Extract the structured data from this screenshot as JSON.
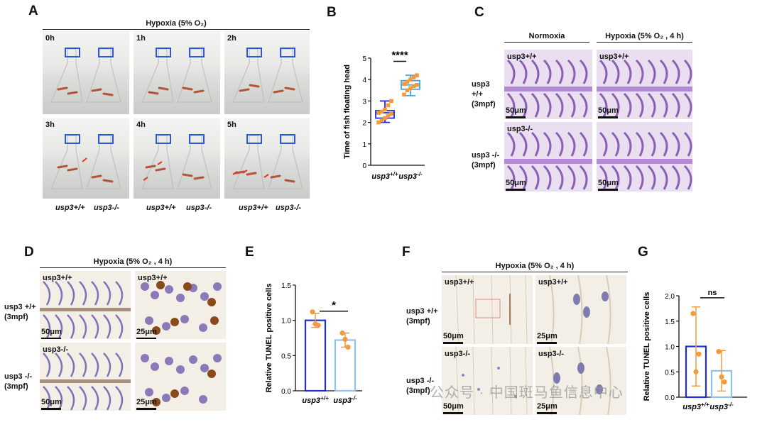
{
  "panel_labels": [
    "A",
    "B",
    "C",
    "D",
    "E",
    "F",
    "G"
  ],
  "panel_a": {
    "header": "Hypoxia (5% O₂)",
    "time_labels": [
      "0h",
      "1h",
      "2h",
      "3h",
      "4h",
      "5h"
    ],
    "genotypes": [
      "usp3+/+",
      "usp3-/-",
      "usp3+/+",
      "usp3-/-",
      "usp3+/+",
      "usp3-/-"
    ]
  },
  "panel_c": {
    "col_headers": [
      "Normoxia",
      "Hypoxia (5% O₂ , 4 h)"
    ],
    "row_labels": [
      "usp3 +/+\n(3mpf)",
      "usp3 -/-\n(3mpf)"
    ],
    "inset_labels": [
      "usp3+/+",
      "usp3+/+",
      "usp3-/-"
    ],
    "scale_bars": [
      "50μm",
      "50μm",
      "50μm",
      "50μm"
    ]
  },
  "panel_d": {
    "header": "Hypoxia (5% O₂ , 4 h)",
    "row_labels": [
      "usp3 +/+\n(3mpf)",
      "usp3 -/-\n(3mpf)"
    ],
    "inset_labels": [
      "usp3+/+",
      "usp3+/+",
      "usp3-/-"
    ],
    "scale_bars": [
      "50μm",
      "25μm",
      "50μm",
      "25μm"
    ]
  },
  "panel_f": {
    "header": "Hypoxia (5% O₂ , 4 h)",
    "row_labels": [
      "usp3 +/+\n(3mpf)",
      "usp3 -/-\n(3mpf)"
    ],
    "inset_labels": [
      "usp3+/+",
      "usp3+/+",
      "usp3-/-",
      "usp3-/-"
    ],
    "scale_bars": [
      "50μm",
      "25μm",
      "50μm",
      "25μm"
    ]
  },
  "watermark": "公众号 · 中国斑马鱼信息中心",
  "chart_data": [
    {
      "panel": "B",
      "type": "box",
      "ylabel": "Time of fish floating head",
      "ylim": [
        0,
        5
      ],
      "yticks": [
        0,
        1,
        2,
        3,
        4,
        5
      ],
      "categories": [
        "usp3+/+",
        "usp3-/-"
      ],
      "boxes": [
        {
          "min": 2.0,
          "q1": 2.2,
          "median": 2.45,
          "q3": 2.55,
          "max": 3.0,
          "color": "#1f2fd6"
        },
        {
          "min": 3.25,
          "q1": 3.55,
          "median": 3.75,
          "q3": 3.95,
          "max": 4.2,
          "color": "#3da7e8"
        }
      ],
      "points": [
        [
          2.0,
          2.1,
          2.2,
          2.3,
          2.4,
          2.45,
          2.5,
          2.6,
          2.8,
          3.0
        ],
        [
          3.3,
          3.5,
          3.6,
          3.7,
          3.75,
          3.8,
          3.9,
          4.0,
          4.1,
          4.2
        ]
      ],
      "point_color": "#f39a3c",
      "significance": "****"
    },
    {
      "panel": "E",
      "type": "bar",
      "ylabel": "Relative TUNEL positive cells",
      "ylim": [
        0,
        1.5
      ],
      "yticks": [
        "0.0",
        "0.5",
        "1.0",
        "1.5"
      ],
      "categories": [
        "usp3+/+",
        "usp3-/-"
      ],
      "values": [
        1.0,
        0.72
      ],
      "errors": [
        0.1,
        0.1
      ],
      "bar_colors": [
        "#1f2fd6",
        "#8ec3f0"
      ],
      "points": [
        [
          1.12,
          0.95,
          0.93
        ],
        [
          0.82,
          0.73,
          0.62
        ]
      ],
      "point_color": "#f39a3c",
      "significance": "*"
    },
    {
      "panel": "G",
      "type": "bar",
      "ylabel": "Relative TUNEL positive cells",
      "ylim": [
        0,
        2.0
      ],
      "yticks": [
        "0.0",
        "0.5",
        "1.0",
        "1.5",
        "2.0"
      ],
      "categories": [
        "usp3+/+",
        "usp3-/-"
      ],
      "values": [
        1.0,
        0.52
      ],
      "errors": [
        0.78,
        0.4
      ],
      "bar_colors": [
        "#1f2fd6",
        "#8ec3f0"
      ],
      "points": [
        [
          1.65,
          0.5,
          0.85
        ],
        [
          0.9,
          0.4,
          0.3
        ]
      ],
      "point_color": "#f39a3c",
      "significance": "ns"
    }
  ]
}
